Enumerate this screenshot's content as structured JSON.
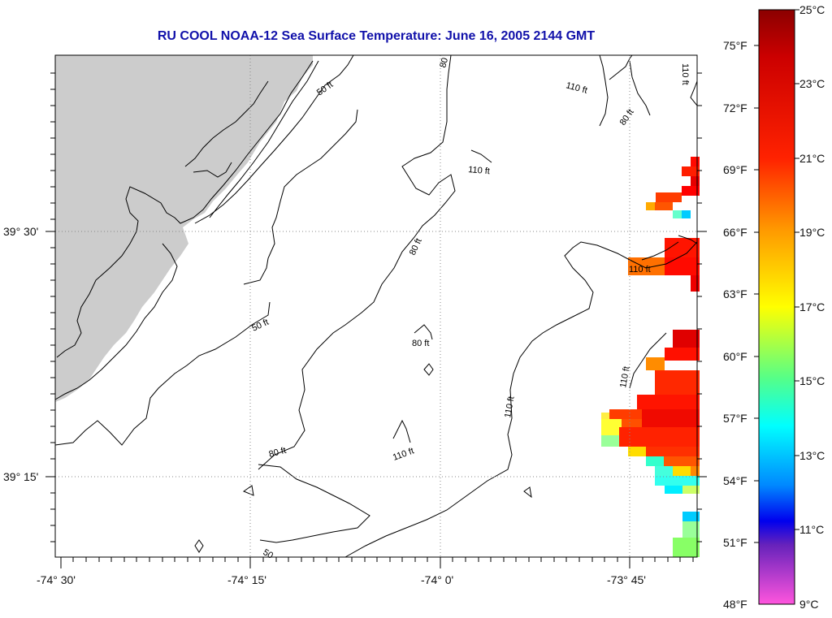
{
  "title": "RU COOL  NOAA-12  Sea Surface Temperature:  June 16, 2005 2144 GMT",
  "map": {
    "lon_labels": [
      "-74° 30'",
      "-74° 15'",
      "-74° 0'",
      "-73° 45'"
    ],
    "lat_labels": [
      "39° 30'",
      "39° 15'"
    ],
    "land_color": "#cccccc",
    "contour_labels": [
      "50 ft",
      "50 ft",
      "80 ft",
      "80 ft",
      "80 ft",
      "80",
      "80 ft",
      "110 ft",
      "110 ft",
      "110 ft",
      "110 ft",
      "110 ft",
      "110 ft",
      "110 ft",
      "50"
    ]
  },
  "colorbar": {
    "fahrenheit_labels": [
      "75°F",
      "72°F",
      "69°F",
      "66°F",
      "63°F",
      "60°F",
      "57°F",
      "54°F",
      "51°F",
      "48°F"
    ],
    "celsius_labels": [
      "25°C",
      "23°C",
      "21°C",
      "19°C",
      "17°C",
      "15°C",
      "13°C",
      "11°C",
      "9°C"
    ],
    "colors": [
      "#8b0000",
      "#ff2a00",
      "#ff9900",
      "#ffff00",
      "#66ff66",
      "#00ffff",
      "#0044ff",
      "#0000aa",
      "#aa22cc",
      "#ff44dd"
    ]
  }
}
